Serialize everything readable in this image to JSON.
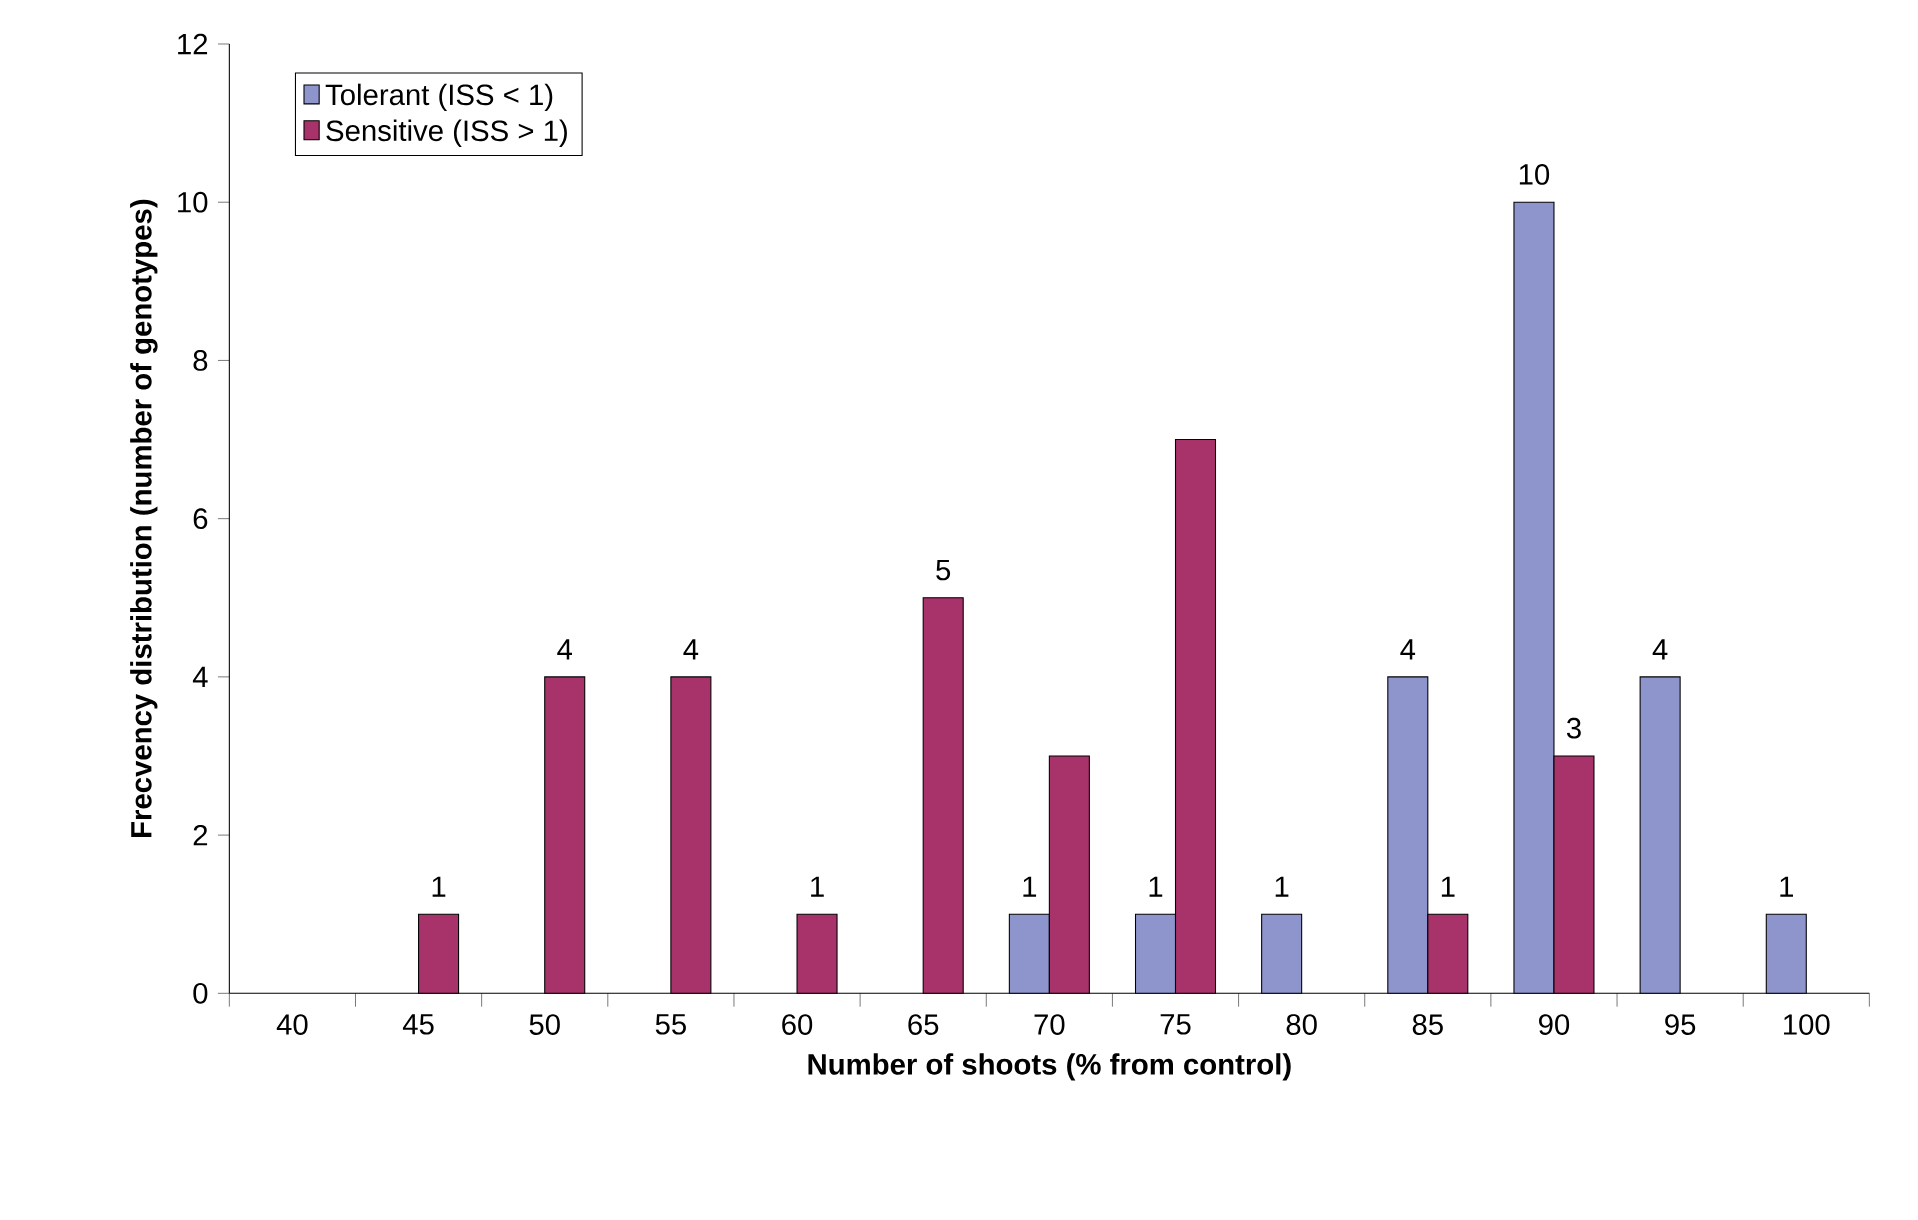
{
  "chart_data": {
    "type": "bar",
    "xlabel": "Number of shoots (% from control)",
    "ylabel": "Frecvency distribution (number of genotypes)",
    "categories": [
      "40",
      "45",
      "50",
      "55",
      "60",
      "65",
      "70",
      "75",
      "80",
      "85",
      "90",
      "95",
      "100"
    ],
    "series": [
      {
        "name": "Tolerant (ISS < 1)",
        "color": "#8e94cc",
        "values": [
          null,
          null,
          null,
          null,
          null,
          null,
          1,
          1,
          1,
          4,
          10,
          4,
          1
        ],
        "value_labels": [
          null,
          null,
          null,
          null,
          null,
          null,
          "1",
          "1",
          "1",
          "4",
          "10",
          "4",
          "1"
        ]
      },
      {
        "name": "Sensitive (ISS > 1)",
        "color": "#a8326a",
        "values": [
          null,
          1,
          4,
          4,
          1,
          5,
          3,
          7,
          null,
          1,
          3,
          null,
          null
        ],
        "value_labels": [
          null,
          "1",
          "4",
          "4",
          "1",
          "5",
          null,
          null,
          null,
          "1",
          "3",
          null,
          null
        ]
      }
    ],
    "ylim": [
      0,
      12
    ],
    "yticks": [
      0,
      2,
      4,
      6,
      8,
      10,
      12
    ],
    "grid": false,
    "legend": "top left"
  }
}
